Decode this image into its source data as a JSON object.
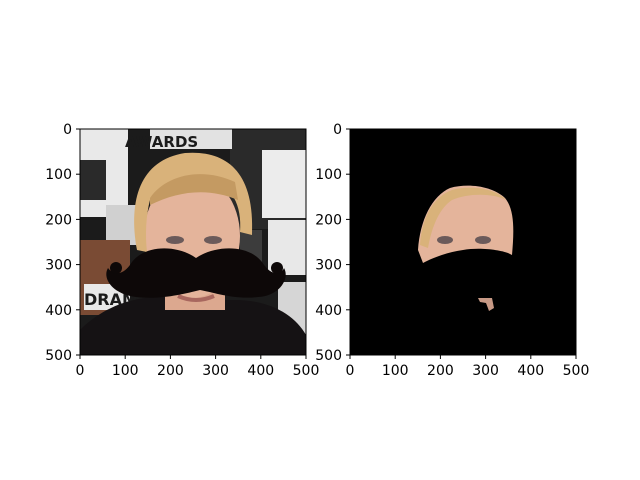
{
  "chart_data": [
    {
      "type": "image",
      "panel": "left",
      "image_content": "face-photo-with-mustache-overlay",
      "xlim": [
        0,
        500
      ],
      "ylim": [
        500,
        0
      ],
      "x_ticks": [
        0,
        100,
        200,
        300,
        400,
        500
      ],
      "y_ticks": [
        0,
        100,
        200,
        300,
        400,
        500
      ],
      "x_tick_labels": [
        "0",
        "100",
        "200",
        "300",
        "400",
        "500"
      ],
      "y_tick_labels": [
        "0",
        "100",
        "200",
        "300",
        "400",
        "500"
      ],
      "background_text": [
        "AWARDS",
        "DRAM"
      ],
      "colors": {
        "mustache": "#0d0808",
        "hair": "#d9b27a",
        "skin": "#e4b49b",
        "clothing": "#151214",
        "backdrop_dark": "#1b1b1b",
        "backdrop_light": "#e9e9e9",
        "backdrop_brown": "#7a4b34"
      }
    },
    {
      "type": "image",
      "panel": "right",
      "image_content": "masked-face-on-black",
      "xlim": [
        0,
        500
      ],
      "ylim": [
        500,
        0
      ],
      "x_ticks": [
        0,
        100,
        200,
        300,
        400,
        500
      ],
      "y_ticks": [
        0,
        100,
        200,
        300,
        400,
        500
      ],
      "x_tick_labels": [
        "0",
        "100",
        "200",
        "300",
        "400",
        "500"
      ],
      "y_tick_labels": [
        "0",
        "100",
        "200",
        "300",
        "400",
        "500"
      ],
      "colors": {
        "background": "#000000",
        "skin": "#e4b49b",
        "hair": "#d9b27a"
      }
    }
  ]
}
